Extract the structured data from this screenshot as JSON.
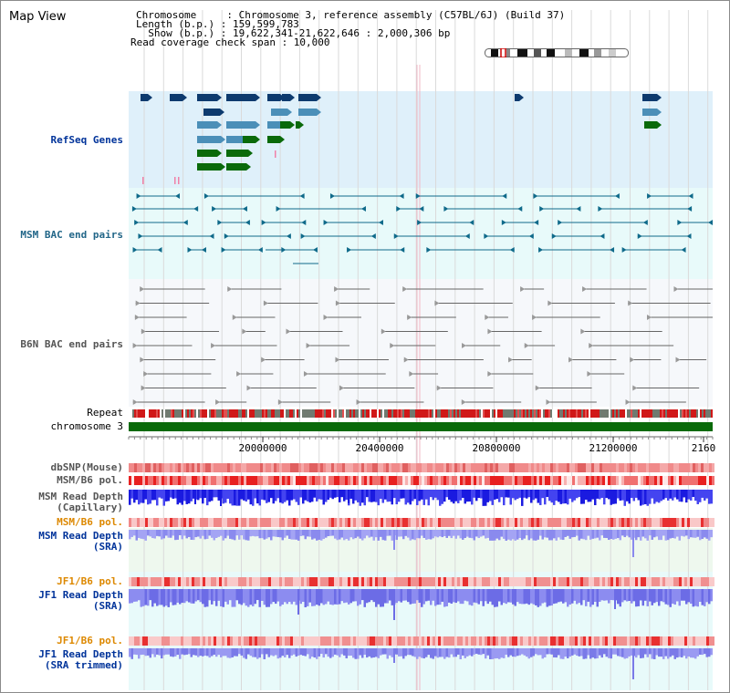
{
  "app": {
    "title": "Map View"
  },
  "header": {
    "chromosome_line": "Chromosome     : Chromosome 3, reference assembly (C57BL/6J) (Build 37)",
    "length_line": "Length (b.p.) : 159,599,783",
    "show_line": "  Show (b.p.) : 19,622,341-21,622,646 : 2,000,306 bp",
    "coverage_line": "Read coverage check span : 10,000"
  },
  "tracks": {
    "refseq": "RefSeq Genes",
    "msm_bac": "MSM BAC end pairs",
    "b6n_bac": "B6N BAC end pairs",
    "repeat": "Repeat",
    "chromosome": "chromosome 3",
    "dbsnp": "dbSNP(Mouse)",
    "msm_b6_pol_1": "MSM/B6 pol.",
    "msm_read_depth_cap_1": "MSM Read Depth",
    "msm_read_depth_cap_2": "(Capillary)",
    "msm_b6_pol_2": "MSM/B6 pol.",
    "msm_read_depth_sra_1": "MSM Read Depth",
    "msm_read_depth_sra_2": "(SRA)",
    "jf1_b6_pol_1": "JF1/B6 pol.",
    "jf1_read_depth_1": "JF1 Read Depth",
    "jf1_read_depth_2": "(SRA)",
    "jf1_b6_pol_2": "JF1/B6 pol.",
    "jf1_read_depth_trim_1": "JF1 Read Depth",
    "jf1_read_depth_trim_2": "(SRA trimmed)"
  },
  "axis": {
    "ticks": [
      "20000000",
      "20400000",
      "20800000",
      "21200000",
      "2160"
    ]
  },
  "colors": {
    "refseq_bg": "#dff0fa",
    "bac_bg": "#e8fafa",
    "gene_navy": "#0d3a6e",
    "gene_steel": "#4b8fb8",
    "gene_green": "#0a6a0a",
    "msm_pair": "#0f6a8a",
    "b6n_pair": "#666666",
    "chromosome": "#0a6a0a",
    "label_navy": "#00339a",
    "label_teal": "#226688",
    "label_orange": "#dd8800"
  }
}
